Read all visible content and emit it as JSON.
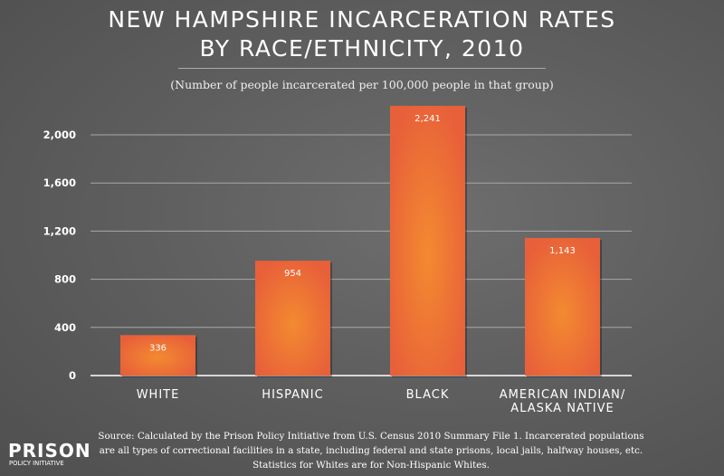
{
  "chart_data": {
    "type": "bar",
    "title_lines": [
      "NEW HAMPSHIRE INCARCERATION RATES",
      "BY RACE/ETHNICITY, 2010"
    ],
    "subtitle": "(Number of people incarcerated per 100,000 people in that group)",
    "categories": [
      "WHITE",
      "HISPANIC",
      "BLACK",
      "AMERICAN INDIAN/ ALASKA NATIVE"
    ],
    "category_lines": [
      [
        "WHITE"
      ],
      [
        "HISPANIC"
      ],
      [
        "BLACK"
      ],
      [
        "AMERICAN INDIAN/",
        "ALASKA NATIVE"
      ]
    ],
    "values": [
      336,
      954,
      2241,
      1143
    ],
    "data_labels": [
      "336",
      "954",
      "2,241",
      "1,143"
    ],
    "ylim": [
      0,
      2000
    ],
    "yticks": [
      0,
      400,
      800,
      1200,
      1600,
      2000
    ],
    "ytick_labels": [
      "0",
      "400",
      "800",
      "1,200",
      "1,600",
      "2,000"
    ],
    "grid": true,
    "bar_color": "#e8603a",
    "bar_highlight": "#f38a30"
  },
  "source_lines": [
    "Source: Calculated by the Prison Policy Initiative from U.S. Census 2010 Summary File 1. Incarcerated populations",
    "are all types of correctional facilities in a state, including federal and state prisons, local jails, halfway houses, etc.",
    "Statistics for Whites are for Non-Hispanic Whites."
  ],
  "logo": {
    "line1": "PRISON",
    "line2": "POLICY INITIATIVE"
  }
}
